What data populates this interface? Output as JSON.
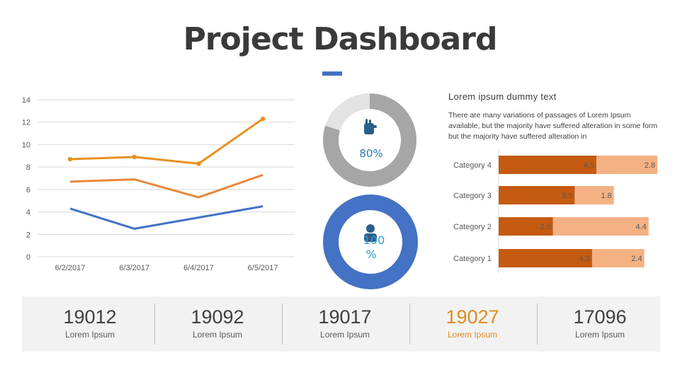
{
  "title": "Project Dashboard",
  "text_block": {
    "heading": "Lorem ipsum dummy text",
    "body": "There are many variations of passages of Lorem Ipsum available, but the majority have suffered alteration in some form but the majority have suffered alteration in"
  },
  "colors": {
    "orange": "#e8901e",
    "orange_mid": "#e8873a",
    "blue": "#4472c4",
    "gray": "#a6a6a6",
    "light_gray": "#e3e3e3",
    "bar_dark": "#c55a11",
    "bar_light": "#f4b183",
    "icon": "#2e5f8a"
  },
  "icons": {
    "donut_1": "hand-icon",
    "donut_2": "person-icon"
  },
  "chart_data": [
    {
      "type": "line",
      "categories": [
        "6/2/2017",
        "6/3/2017",
        "6/4/2017",
        "6/5/2017"
      ],
      "series": [
        {
          "values": [
            8.7,
            8.9,
            8.3,
            12.3
          ],
          "color": "#e8901e",
          "markers": true
        },
        {
          "values": [
            6.7,
            6.9,
            5.3,
            7.3
          ],
          "color": "#e8873a",
          "markers": false
        },
        {
          "values": [
            4.3,
            2.5,
            3.5,
            4.5
          ],
          "color": "#4472c4",
          "markers": false
        }
      ],
      "ylim": [
        0,
        14
      ],
      "yticks": [
        "0",
        "2",
        "4",
        "6",
        "8",
        "10",
        "12",
        "14"
      ],
      "grid": true
    },
    {
      "type": "pie",
      "variant": "donut",
      "value_percent": 80,
      "label": "80%",
      "colors": [
        "#a6a6a6",
        "#e3e3e3"
      ]
    },
    {
      "type": "pie",
      "variant": "donut",
      "value_percent": 100,
      "label_line1": "100",
      "label_line2": "%",
      "colors": [
        "#4472c4"
      ]
    },
    {
      "type": "bar",
      "orientation": "horizontal",
      "stacked": true,
      "categories": [
        "Category 4",
        "Category 3",
        "Category 2",
        "Category 1"
      ],
      "series": [
        {
          "values": [
            4.5,
            3.5,
            2.5,
            4.3
          ],
          "color": "#c55a11"
        },
        {
          "values": [
            2.8,
            1.8,
            4.4,
            2.4
          ],
          "color": "#f4b183"
        }
      ],
      "max_total": 7.3
    }
  ],
  "stats": [
    {
      "value": "19012",
      "label": "Lorem Ipsum"
    },
    {
      "value": "19092",
      "label": "Lorem Ipsum"
    },
    {
      "value": "19017",
      "label": "Lorem Ipsum"
    },
    {
      "value": "19027",
      "label": "Lorem Ipsum",
      "accent": true
    },
    {
      "value": "17096",
      "label": "Lorem Ipsum"
    }
  ]
}
